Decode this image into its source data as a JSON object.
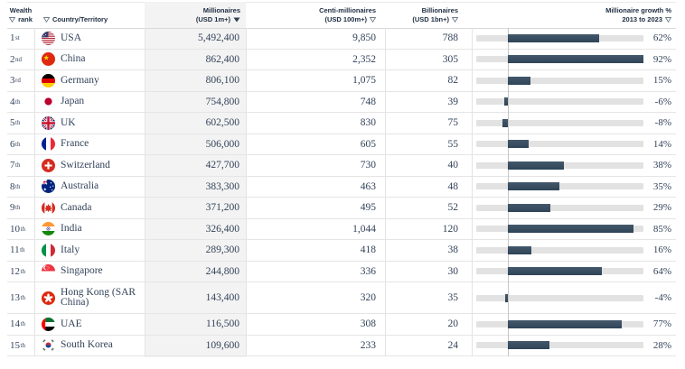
{
  "header": {
    "rank_line1": "Wealth",
    "rank_line2": "rank",
    "country": "Country/Territory",
    "millionaires_line1": "Millionaires",
    "millionaires_line2": "(USD 1m+)",
    "centi_line1": "Centi-millionaires",
    "centi_line2": "(USD 100m+)",
    "billionaires_line1": "Billionaires",
    "billionaires_line2": "(USD 1bn+)",
    "growth_line1": "Millionaire growth %",
    "growth_line2": "2013 to 2023"
  },
  "colors": {
    "bar": "#35495d",
    "track": "#e2e2e2",
    "column_shade": "#f3f3f3",
    "header_text": "#1d2d40",
    "body_text": "#33435a"
  },
  "chart_data": {
    "type": "table",
    "title": "",
    "columns": [
      "Wealth rank",
      "Country/Territory",
      "Millionaires (USD 1m+)",
      "Centi-millionaires (USD 100m+)",
      "Billionaires (USD 1bn+)",
      "Millionaire growth % 2013 to 2023"
    ],
    "bar_axis": {
      "zero_at_fraction": 0.19,
      "max_pct": 92,
      "min_pct": -50
    },
    "sorted_by": "Millionaires (USD 1m+) descending",
    "rows": [
      {
        "rank": "1",
        "ordinal": "st",
        "flag": "usa",
        "country": "USA",
        "millionaires": "5,492,400",
        "centi": "9,850",
        "billionaires": "788",
        "growth_pct": 62,
        "growth_label": "62%"
      },
      {
        "rank": "2",
        "ordinal": "nd",
        "flag": "chn",
        "country": "China",
        "millionaires": "862,400",
        "centi": "2,352",
        "billionaires": "305",
        "growth_pct": 92,
        "growth_label": "92%"
      },
      {
        "rank": "3",
        "ordinal": "rd",
        "flag": "deu",
        "country": "Germany",
        "millionaires": "806,100",
        "centi": "1,075",
        "billionaires": "82",
        "growth_pct": 15,
        "growth_label": "15%"
      },
      {
        "rank": "4",
        "ordinal": "th",
        "flag": "jpn",
        "country": "Japan",
        "millionaires": "754,800",
        "centi": "748",
        "billionaires": "39",
        "growth_pct": -6,
        "growth_label": "-6%"
      },
      {
        "rank": "5",
        "ordinal": "th",
        "flag": "gbr",
        "country": "UK",
        "millionaires": "602,500",
        "centi": "830",
        "billionaires": "75",
        "growth_pct": -8,
        "growth_label": "-8%"
      },
      {
        "rank": "6",
        "ordinal": "th",
        "flag": "fra",
        "country": "France",
        "millionaires": "506,000",
        "centi": "605",
        "billionaires": "55",
        "growth_pct": 14,
        "growth_label": "14%"
      },
      {
        "rank": "7",
        "ordinal": "th",
        "flag": "che",
        "country": "Switzerland",
        "millionaires": "427,700",
        "centi": "730",
        "billionaires": "40",
        "growth_pct": 38,
        "growth_label": "38%"
      },
      {
        "rank": "8",
        "ordinal": "th",
        "flag": "aus",
        "country": "Australia",
        "millionaires": "383,300",
        "centi": "463",
        "billionaires": "48",
        "growth_pct": 35,
        "growth_label": "35%"
      },
      {
        "rank": "9",
        "ordinal": "th",
        "flag": "can",
        "country": "Canada",
        "millionaires": "371,200",
        "centi": "495",
        "billionaires": "52",
        "growth_pct": 29,
        "growth_label": "29%"
      },
      {
        "rank": "10",
        "ordinal": "th",
        "flag": "ind",
        "country": "India",
        "millionaires": "326,400",
        "centi": "1,044",
        "billionaires": "120",
        "growth_pct": 85,
        "growth_label": "85%"
      },
      {
        "rank": "11",
        "ordinal": "th",
        "flag": "ita",
        "country": "Italy",
        "millionaires": "289,300",
        "centi": "418",
        "billionaires": "38",
        "growth_pct": 16,
        "growth_label": "16%"
      },
      {
        "rank": "12",
        "ordinal": "th",
        "flag": "sgp",
        "country": "Singapore",
        "millionaires": "244,800",
        "centi": "336",
        "billionaires": "30",
        "growth_pct": 64,
        "growth_label": "64%"
      },
      {
        "rank": "13",
        "ordinal": "th",
        "flag": "hkg",
        "country": "Hong Kong (SAR China)",
        "millionaires": "143,400",
        "centi": "320",
        "billionaires": "35",
        "growth_pct": -4,
        "growth_label": "-4%",
        "tall": true
      },
      {
        "rank": "14",
        "ordinal": "th",
        "flag": "are",
        "country": "UAE",
        "millionaires": "116,500",
        "centi": "308",
        "billionaires": "20",
        "growth_pct": 77,
        "growth_label": "77%"
      },
      {
        "rank": "15",
        "ordinal": "th",
        "flag": "kor",
        "country": "South Korea",
        "millionaires": "109,600",
        "centi": "233",
        "billionaires": "24",
        "growth_pct": 28,
        "growth_label": "28%"
      }
    ]
  }
}
